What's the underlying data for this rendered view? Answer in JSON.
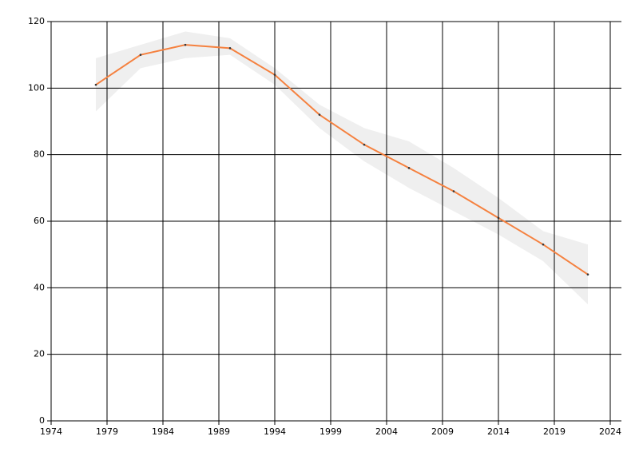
{
  "chart_data": {
    "type": "line",
    "x": [
      1978,
      1982,
      1986,
      1990,
      1994,
      1998,
      2002,
      2006,
      2010,
      2014,
      2018,
      2022
    ],
    "series": [
      {
        "color": "#f5813f",
        "values": [
          101,
          110,
          113,
          112,
          104,
          92,
          83,
          76,
          69,
          61,
          53,
          44
        ],
        "upper": [
          109,
          113,
          117,
          115,
          106,
          95,
          88,
          84,
          76,
          67,
          57,
          53
        ],
        "lower": [
          93,
          106,
          109,
          110,
          101,
          88,
          78,
          70,
          63,
          56,
          48,
          35
        ],
        "band_color": "#efefef",
        "marker_color": "#333333"
      }
    ],
    "xlim": [
      1974,
      2025
    ],
    "xticks": [
      1974,
      1979,
      1984,
      1989,
      1994,
      1999,
      2004,
      2009,
      2014,
      2019,
      2024
    ],
    "ylim": [
      0,
      120
    ],
    "yticks": [
      0,
      20,
      40,
      60,
      80,
      100,
      120
    ],
    "grid": true
  }
}
